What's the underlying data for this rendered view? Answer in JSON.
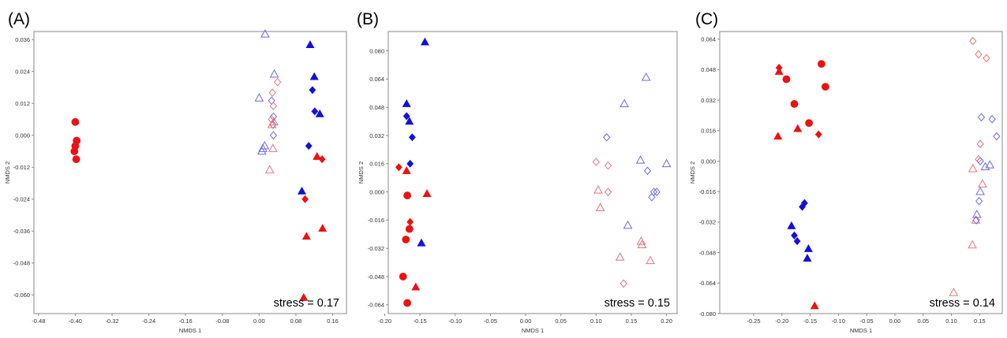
{
  "colors": {
    "red": "#ee1111",
    "blue": "#1111dd",
    "red_open": "#f07070",
    "blue_open": "#6a6af0"
  },
  "chart_data": [
    {
      "type": "scatter",
      "panel_label": "(A)",
      "xlabel": "NMDS 1",
      "ylabel": "NMDS 2",
      "annotation": "stress = 0.17",
      "xlim": [
        -0.49,
        0.19
      ],
      "ylim": [
        -0.067,
        0.039
      ],
      "xticks": [
        "-0.48",
        "-0.40",
        "-0.32",
        "-0.24",
        "-0.16",
        "-0.08",
        "0.00",
        "0.08",
        "0.16"
      ],
      "yticks": [
        "0.036",
        "0.024",
        "0.012",
        "0.000",
        "-0.012",
        "-0.024",
        "-0.036",
        "-0.048",
        "-0.060"
      ],
      "points": [
        {
          "x": -0.4,
          "y": 0.005,
          "shape": "circle",
          "color": "red",
          "filled": true
        },
        {
          "x": -0.397,
          "y": -0.002,
          "shape": "circle",
          "color": "red",
          "filled": true
        },
        {
          "x": -0.4,
          "y": -0.004,
          "shape": "circle",
          "color": "red",
          "filled": true
        },
        {
          "x": -0.402,
          "y": -0.006,
          "shape": "circle",
          "color": "red",
          "filled": true
        },
        {
          "x": -0.398,
          "y": -0.009,
          "shape": "circle",
          "color": "red",
          "filled": true
        },
        {
          "x": 0.013,
          "y": 0.038,
          "shape": "triangle",
          "color": "blue",
          "filled": false
        },
        {
          "x": 0.033,
          "y": 0.023,
          "shape": "triangle",
          "color": "blue",
          "filled": false
        },
        {
          "x": 0.0,
          "y": 0.014,
          "shape": "triangle",
          "color": "blue",
          "filled": false
        },
        {
          "x": 0.027,
          "y": 0.013,
          "shape": "diamond",
          "color": "blue",
          "filled": false
        },
        {
          "x": 0.031,
          "y": 0.007,
          "shape": "diamond",
          "color": "blue",
          "filled": false
        },
        {
          "x": 0.03,
          "y": 0.004,
          "shape": "diamond",
          "color": "blue",
          "filled": false
        },
        {
          "x": 0.031,
          "y": 0.0,
          "shape": "diamond",
          "color": "blue",
          "filled": false
        },
        {
          "x": 0.012,
          "y": -0.004,
          "shape": "triangle",
          "color": "blue",
          "filled": false
        },
        {
          "x": 0.008,
          "y": -0.005,
          "shape": "triangle",
          "color": "blue",
          "filled": false
        },
        {
          "x": 0.006,
          "y": -0.006,
          "shape": "triangle",
          "color": "blue",
          "filled": false
        },
        {
          "x": 0.04,
          "y": 0.02,
          "shape": "diamond",
          "color": "red",
          "filled": false
        },
        {
          "x": 0.029,
          "y": 0.016,
          "shape": "diamond",
          "color": "red",
          "filled": false
        },
        {
          "x": 0.031,
          "y": 0.011,
          "shape": "diamond",
          "color": "red",
          "filled": false
        },
        {
          "x": 0.027,
          "y": 0.006,
          "shape": "diamond",
          "color": "red",
          "filled": false
        },
        {
          "x": 0.032,
          "y": 0.005,
          "shape": "triangle",
          "color": "red",
          "filled": false
        },
        {
          "x": 0.028,
          "y": 0.004,
          "shape": "triangle",
          "color": "red",
          "filled": false
        },
        {
          "x": 0.03,
          "y": -0.005,
          "shape": "triangle",
          "color": "red",
          "filled": false
        },
        {
          "x": 0.023,
          "y": -0.013,
          "shape": "triangle",
          "color": "red",
          "filled": false
        },
        {
          "x": 0.111,
          "y": 0.034,
          "shape": "triangle",
          "color": "blue",
          "filled": true
        },
        {
          "x": 0.12,
          "y": 0.022,
          "shape": "triangle",
          "color": "blue",
          "filled": true
        },
        {
          "x": 0.116,
          "y": 0.017,
          "shape": "diamond",
          "color": "blue",
          "filled": true
        },
        {
          "x": 0.121,
          "y": 0.009,
          "shape": "diamond",
          "color": "blue",
          "filled": true
        },
        {
          "x": 0.132,
          "y": 0.008,
          "shape": "triangle",
          "color": "blue",
          "filled": true
        },
        {
          "x": 0.108,
          "y": -0.004,
          "shape": "diamond",
          "color": "blue",
          "filled": true
        },
        {
          "x": 0.093,
          "y": -0.021,
          "shape": "triangle",
          "color": "blue",
          "filled": true
        },
        {
          "x": 0.126,
          "y": -0.008,
          "shape": "triangle",
          "color": "red",
          "filled": true
        },
        {
          "x": 0.137,
          "y": -0.009,
          "shape": "diamond",
          "color": "red",
          "filled": true
        },
        {
          "x": 0.1,
          "y": -0.024,
          "shape": "diamond",
          "color": "red",
          "filled": true
        },
        {
          "x": 0.103,
          "y": -0.038,
          "shape": "triangle",
          "color": "red",
          "filled": true
        },
        {
          "x": 0.138,
          "y": -0.035,
          "shape": "triangle",
          "color": "red",
          "filled": true
        },
        {
          "x": 0.097,
          "y": -0.061,
          "shape": "triangle",
          "color": "red",
          "filled": true
        }
      ]
    },
    {
      "type": "scatter",
      "panel_label": "(B)",
      "xlabel": "NMDS 1",
      "ylabel": "NMDS 2",
      "annotation": "stress = 0.15",
      "xlim": [
        -0.195,
        0.215
      ],
      "ylim": [
        -0.069,
        0.091
      ],
      "xticks": [
        "-0.20",
        "-0.15",
        "-0.10",
        "-0.05",
        "0.00",
        "0.05",
        "0.10",
        "0.15",
        "0.20"
      ],
      "yticks": [
        "0.080",
        "0.064",
        "0.048",
        "0.032",
        "0.016",
        "0.000",
        "-0.016",
        "-0.032",
        "-0.048",
        "-0.064"
      ],
      "points": [
        {
          "x": -0.143,
          "y": 0.085,
          "shape": "triangle",
          "color": "blue",
          "filled": true
        },
        {
          "x": -0.169,
          "y": 0.05,
          "shape": "triangle",
          "color": "blue",
          "filled": true
        },
        {
          "x": -0.169,
          "y": 0.043,
          "shape": "diamond",
          "color": "blue",
          "filled": true
        },
        {
          "x": -0.165,
          "y": 0.04,
          "shape": "triangle",
          "color": "blue",
          "filled": true
        },
        {
          "x": -0.161,
          "y": 0.031,
          "shape": "diamond",
          "color": "blue",
          "filled": true
        },
        {
          "x": -0.164,
          "y": 0.016,
          "shape": "diamond",
          "color": "blue",
          "filled": true
        },
        {
          "x": -0.18,
          "y": 0.014,
          "shape": "diamond",
          "color": "red",
          "filled": true
        },
        {
          "x": -0.169,
          "y": 0.012,
          "shape": "triangle",
          "color": "red",
          "filled": true
        },
        {
          "x": -0.168,
          "y": -0.002,
          "shape": "circle",
          "color": "red",
          "filled": true
        },
        {
          "x": -0.14,
          "y": -0.001,
          "shape": "triangle",
          "color": "red",
          "filled": true
        },
        {
          "x": -0.164,
          "y": -0.017,
          "shape": "diamond",
          "color": "red",
          "filled": true
        },
        {
          "x": -0.165,
          "y": -0.021,
          "shape": "circle",
          "color": "red",
          "filled": true
        },
        {
          "x": -0.17,
          "y": -0.027,
          "shape": "circle",
          "color": "red",
          "filled": true
        },
        {
          "x": -0.148,
          "y": -0.029,
          "shape": "triangle",
          "color": "blue",
          "filled": true
        },
        {
          "x": -0.174,
          "y": -0.048,
          "shape": "circle",
          "color": "red",
          "filled": true
        },
        {
          "x": -0.156,
          "y": -0.054,
          "shape": "triangle",
          "color": "red",
          "filled": true
        },
        {
          "x": -0.168,
          "y": -0.063,
          "shape": "circle",
          "color": "red",
          "filled": true
        },
        {
          "x": 0.171,
          "y": 0.065,
          "shape": "triangle",
          "color": "blue",
          "filled": false
        },
        {
          "x": 0.14,
          "y": 0.05,
          "shape": "triangle",
          "color": "blue",
          "filled": false
        },
        {
          "x": 0.115,
          "y": 0.031,
          "shape": "diamond",
          "color": "blue",
          "filled": false
        },
        {
          "x": 0.163,
          "y": 0.018,
          "shape": "triangle",
          "color": "blue",
          "filled": false
        },
        {
          "x": 0.2,
          "y": 0.016,
          "shape": "triangle",
          "color": "blue",
          "filled": false
        },
        {
          "x": 0.173,
          "y": 0.012,
          "shape": "diamond",
          "color": "blue",
          "filled": false
        },
        {
          "x": 0.182,
          "y": 0.0,
          "shape": "diamond",
          "color": "blue",
          "filled": false
        },
        {
          "x": 0.186,
          "y": 0.0,
          "shape": "diamond",
          "color": "blue",
          "filled": false
        },
        {
          "x": 0.179,
          "y": -0.003,
          "shape": "diamond",
          "color": "blue",
          "filled": false
        },
        {
          "x": 0.145,
          "y": -0.019,
          "shape": "triangle",
          "color": "blue",
          "filled": false
        },
        {
          "x": 0.1,
          "y": 0.017,
          "shape": "diamond",
          "color": "red",
          "filled": false
        },
        {
          "x": 0.117,
          "y": 0.015,
          "shape": "diamond",
          "color": "red",
          "filled": false
        },
        {
          "x": 0.103,
          "y": 0.001,
          "shape": "triangle",
          "color": "red",
          "filled": false
        },
        {
          "x": 0.117,
          "y": 0.0,
          "shape": "diamond",
          "color": "red",
          "filled": false
        },
        {
          "x": 0.106,
          "y": -0.009,
          "shape": "triangle",
          "color": "red",
          "filled": false
        },
        {
          "x": 0.164,
          "y": -0.028,
          "shape": "triangle",
          "color": "red",
          "filled": false
        },
        {
          "x": 0.165,
          "y": -0.03,
          "shape": "triangle",
          "color": "red",
          "filled": false
        },
        {
          "x": 0.134,
          "y": -0.037,
          "shape": "triangle",
          "color": "red",
          "filled": false
        },
        {
          "x": 0.177,
          "y": -0.039,
          "shape": "triangle",
          "color": "red",
          "filled": false
        },
        {
          "x": 0.139,
          "y": -0.052,
          "shape": "diamond",
          "color": "red",
          "filled": false
        }
      ]
    },
    {
      "type": "scatter",
      "panel_label": "(C)",
      "xlabel": "NMDS 1",
      "ylabel": "NMDS 2",
      "annotation": "stress = 0.14",
      "xlim": [
        -0.31,
        0.19
      ],
      "ylim": [
        -0.08,
        0.068
      ],
      "xticks": [
        "-0.25",
        "-0.20",
        "-0.15",
        "-0.10",
        "-0.05",
        "0.00",
        "0.05",
        "0.10",
        "0.15"
      ],
      "yticks": [
        "0.064",
        "0.048",
        "0.032",
        "0.016",
        "0.000",
        "-0.016",
        "-0.032",
        "-0.048",
        "-0.064",
        "-0.080"
      ],
      "points": [
        {
          "x": -0.205,
          "y": 0.049,
          "shape": "diamond",
          "color": "red",
          "filled": true
        },
        {
          "x": -0.205,
          "y": 0.047,
          "shape": "triangle",
          "color": "red",
          "filled": true
        },
        {
          "x": -0.192,
          "y": 0.043,
          "shape": "circle",
          "color": "red",
          "filled": true
        },
        {
          "x": -0.13,
          "y": 0.051,
          "shape": "circle",
          "color": "red",
          "filled": true
        },
        {
          "x": -0.123,
          "y": 0.039,
          "shape": "circle",
          "color": "red",
          "filled": true
        },
        {
          "x": -0.178,
          "y": 0.03,
          "shape": "circle",
          "color": "red",
          "filled": true
        },
        {
          "x": -0.152,
          "y": 0.02,
          "shape": "circle",
          "color": "red",
          "filled": true
        },
        {
          "x": -0.172,
          "y": 0.017,
          "shape": "triangle",
          "color": "red",
          "filled": true
        },
        {
          "x": -0.207,
          "y": 0.013,
          "shape": "triangle",
          "color": "red",
          "filled": true
        },
        {
          "x": -0.135,
          "y": 0.014,
          "shape": "diamond",
          "color": "red",
          "filled": true
        },
        {
          "x": -0.16,
          "y": -0.022,
          "shape": "diamond",
          "color": "blue",
          "filled": true
        },
        {
          "x": -0.164,
          "y": -0.024,
          "shape": "diamond",
          "color": "blue",
          "filled": true
        },
        {
          "x": -0.183,
          "y": -0.034,
          "shape": "triangle",
          "color": "blue",
          "filled": true
        },
        {
          "x": -0.178,
          "y": -0.039,
          "shape": "diamond",
          "color": "blue",
          "filled": true
        },
        {
          "x": -0.173,
          "y": -0.042,
          "shape": "diamond",
          "color": "blue",
          "filled": true
        },
        {
          "x": -0.153,
          "y": -0.046,
          "shape": "triangle",
          "color": "blue",
          "filled": true
        },
        {
          "x": -0.155,
          "y": -0.051,
          "shape": "triangle",
          "color": "blue",
          "filled": true
        },
        {
          "x": -0.142,
          "y": -0.076,
          "shape": "triangle",
          "color": "red",
          "filled": true
        },
        {
          "x": 0.138,
          "y": 0.063,
          "shape": "diamond",
          "color": "red",
          "filled": false
        },
        {
          "x": 0.148,
          "y": 0.056,
          "shape": "diamond",
          "color": "red",
          "filled": false
        },
        {
          "x": 0.162,
          "y": 0.054,
          "shape": "diamond",
          "color": "red",
          "filled": false
        },
        {
          "x": 0.151,
          "y": 0.009,
          "shape": "diamond",
          "color": "red",
          "filled": false
        },
        {
          "x": 0.148,
          "y": 0.001,
          "shape": "diamond",
          "color": "red",
          "filled": false
        },
        {
          "x": 0.138,
          "y": -0.004,
          "shape": "triangle",
          "color": "red",
          "filled": false
        },
        {
          "x": 0.155,
          "y": -0.012,
          "shape": "triangle",
          "color": "red",
          "filled": false
        },
        {
          "x": 0.143,
          "y": -0.031,
          "shape": "triangle",
          "color": "red",
          "filled": false
        },
        {
          "x": 0.137,
          "y": -0.044,
          "shape": "triangle",
          "color": "red",
          "filled": false
        },
        {
          "x": 0.104,
          "y": -0.069,
          "shape": "triangle",
          "color": "red",
          "filled": false
        },
        {
          "x": 0.153,
          "y": 0.023,
          "shape": "diamond",
          "color": "blue",
          "filled": false
        },
        {
          "x": 0.172,
          "y": 0.022,
          "shape": "diamond",
          "color": "blue",
          "filled": false
        },
        {
          "x": 0.18,
          "y": 0.013,
          "shape": "diamond",
          "color": "blue",
          "filled": false
        },
        {
          "x": 0.151,
          "y": 0.0,
          "shape": "diamond",
          "color": "blue",
          "filled": false
        },
        {
          "x": 0.16,
          "y": -0.003,
          "shape": "triangle",
          "color": "blue",
          "filled": false
        },
        {
          "x": 0.168,
          "y": -0.002,
          "shape": "triangle",
          "color": "blue",
          "filled": false
        },
        {
          "x": 0.151,
          "y": -0.016,
          "shape": "triangle",
          "color": "blue",
          "filled": false
        },
        {
          "x": 0.149,
          "y": -0.021,
          "shape": "diamond",
          "color": "blue",
          "filled": false
        },
        {
          "x": 0.145,
          "y": -0.028,
          "shape": "triangle",
          "color": "blue",
          "filled": false
        },
        {
          "x": 0.144,
          "y": -0.031,
          "shape": "diamond",
          "color": "blue",
          "filled": false
        }
      ]
    }
  ]
}
